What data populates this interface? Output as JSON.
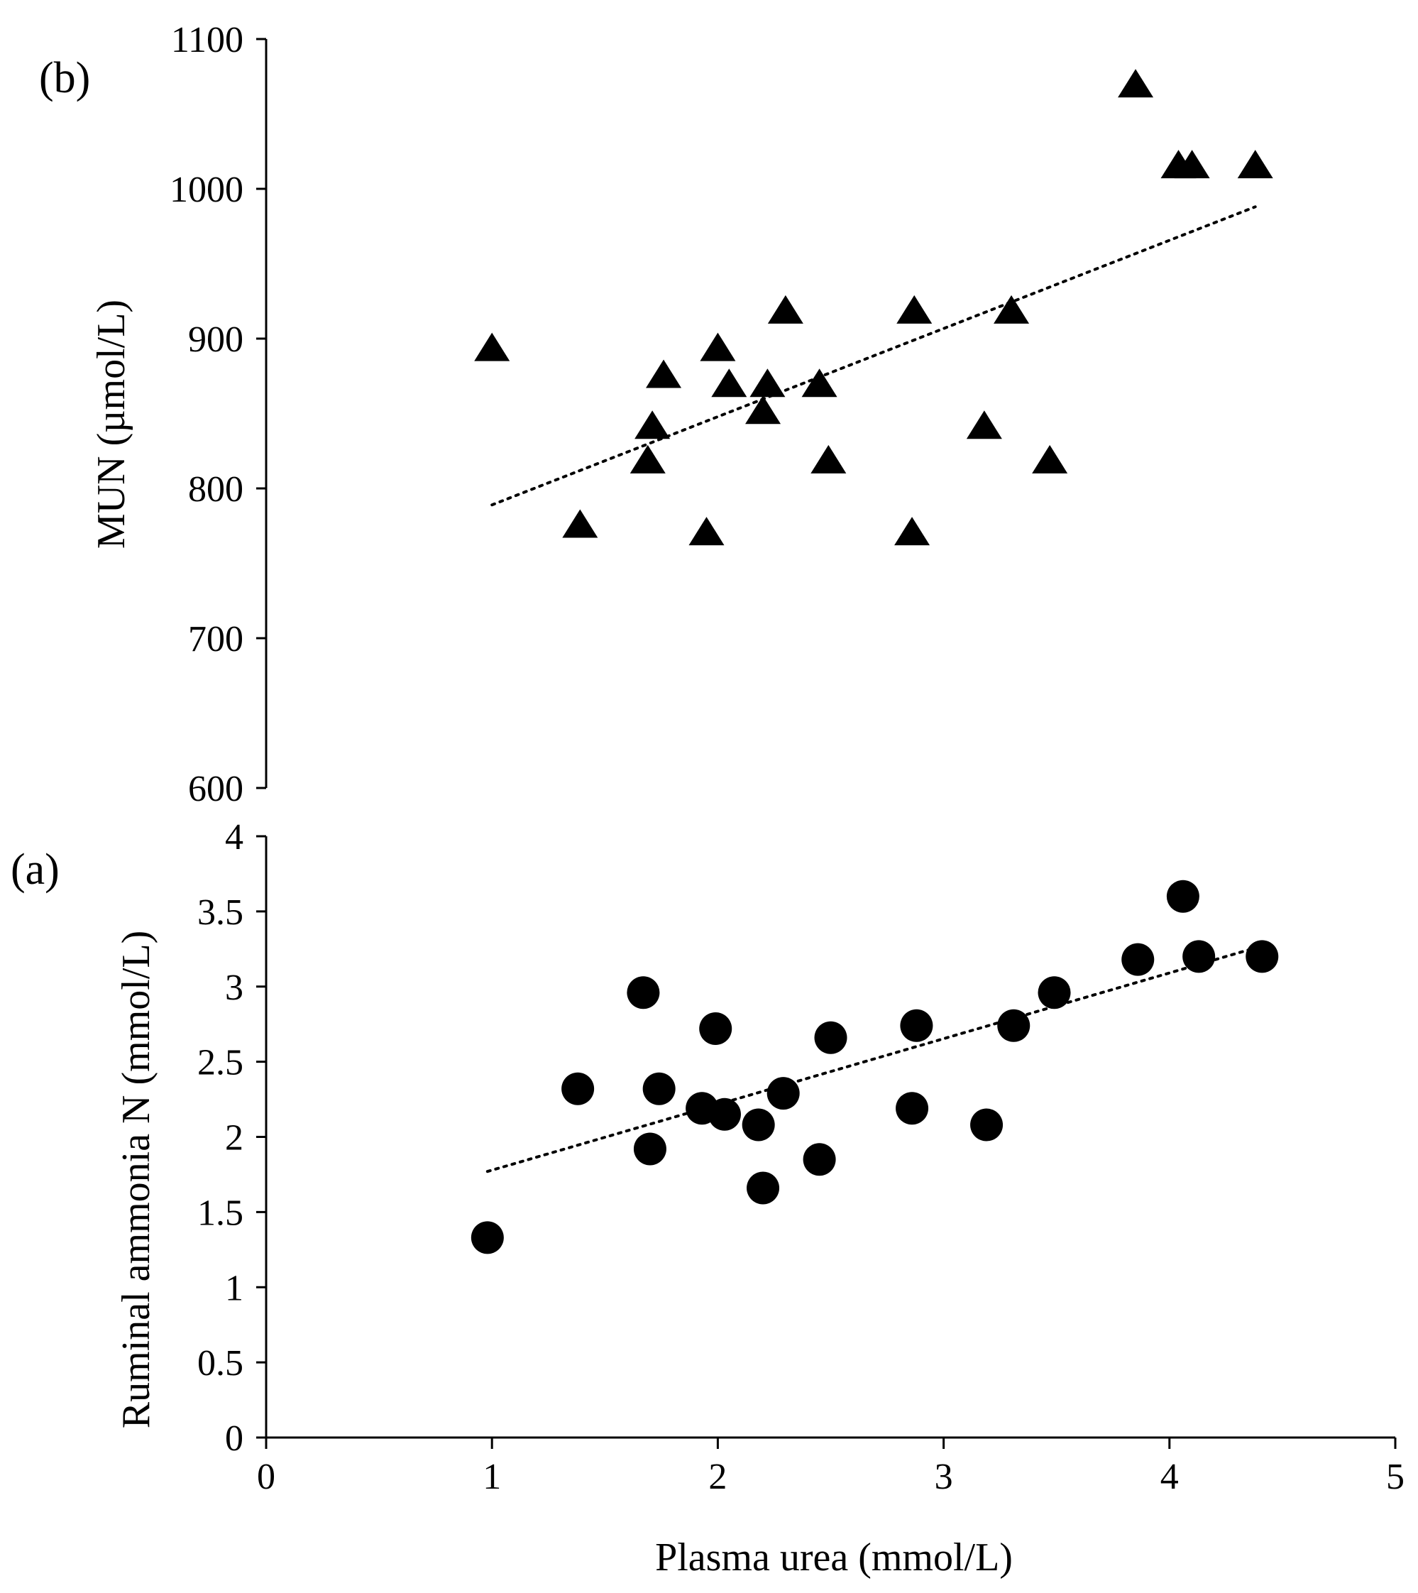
{
  "colors": {
    "ink": "#000000",
    "background": "#ffffff"
  },
  "chart_data": [
    {
      "id": "b",
      "type": "scatter",
      "panel_label": "(b)",
      "marker": "triangle",
      "trendline": "linear-dotted",
      "title": "",
      "ylabel": "MUN (µmol/L)",
      "xlabel": "",
      "xlim": [
        0,
        5
      ],
      "ylim": [
        600,
        1100
      ],
      "yticks": [
        600,
        700,
        800,
        900,
        1000,
        1100
      ],
      "ytick_labels": [
        "600",
        "700",
        "800",
        "900",
        "1000",
        "1100"
      ],
      "trend": {
        "x": [
          1.0,
          4.38
        ],
        "y": [
          789,
          988
        ]
      },
      "points": [
        {
          "x": 1.0,
          "y": 893
        },
        {
          "x": 1.39,
          "y": 775
        },
        {
          "x": 1.69,
          "y": 818
        },
        {
          "x": 1.71,
          "y": 841
        },
        {
          "x": 1.76,
          "y": 875
        },
        {
          "x": 1.95,
          "y": 770
        },
        {
          "x": 2.0,
          "y": 893
        },
        {
          "x": 2.05,
          "y": 869
        },
        {
          "x": 2.2,
          "y": 851
        },
        {
          "x": 2.22,
          "y": 869
        },
        {
          "x": 2.3,
          "y": 918
        },
        {
          "x": 2.45,
          "y": 869
        },
        {
          "x": 2.49,
          "y": 818
        },
        {
          "x": 2.86,
          "y": 770
        },
        {
          "x": 2.87,
          "y": 918
        },
        {
          "x": 3.18,
          "y": 841
        },
        {
          "x": 3.3,
          "y": 918
        },
        {
          "x": 3.47,
          "y": 818
        },
        {
          "x": 3.85,
          "y": 1069
        },
        {
          "x": 4.04,
          "y": 1015
        },
        {
          "x": 4.1,
          "y": 1015
        },
        {
          "x": 4.38,
          "y": 1015
        }
      ]
    },
    {
      "id": "a",
      "type": "scatter",
      "panel_label": "(a)",
      "marker": "circle",
      "trendline": "linear-dotted",
      "title": "",
      "ylabel": "Ruminal ammonia N (mmol/L)",
      "xlabel": "Plasma urea (mmol/L)",
      "xlim": [
        0,
        5
      ],
      "ylim": [
        0,
        4
      ],
      "xticks": [
        0,
        1,
        2,
        3,
        4,
        5
      ],
      "xtick_labels": [
        "0",
        "1",
        "2",
        "3",
        "4",
        "5"
      ],
      "yticks": [
        0,
        0.5,
        1,
        1.5,
        2,
        2.5,
        3,
        3.5,
        4
      ],
      "ytick_labels": [
        "0",
        "0.5",
        "1",
        "1.5",
        "2",
        "2.5",
        "3",
        "3.5",
        "4"
      ],
      "trend": {
        "x": [
          0.98,
          4.41
        ],
        "y": [
          1.77,
          3.27
        ]
      },
      "points": [
        {
          "x": 0.98,
          "y": 1.33
        },
        {
          "x": 1.38,
          "y": 2.32
        },
        {
          "x": 1.67,
          "y": 2.96
        },
        {
          "x": 1.7,
          "y": 1.92
        },
        {
          "x": 1.74,
          "y": 2.32
        },
        {
          "x": 1.93,
          "y": 2.19
        },
        {
          "x": 1.99,
          "y": 2.72
        },
        {
          "x": 2.03,
          "y": 2.15
        },
        {
          "x": 2.18,
          "y": 2.08
        },
        {
          "x": 2.2,
          "y": 1.66
        },
        {
          "x": 2.29,
          "y": 2.29
        },
        {
          "x": 2.45,
          "y": 1.85
        },
        {
          "x": 2.5,
          "y": 2.66
        },
        {
          "x": 2.86,
          "y": 2.19
        },
        {
          "x": 2.88,
          "y": 2.74
        },
        {
          "x": 3.19,
          "y": 2.08
        },
        {
          "x": 3.31,
          "y": 2.74
        },
        {
          "x": 3.49,
          "y": 2.96
        },
        {
          "x": 3.86,
          "y": 3.18
        },
        {
          "x": 4.06,
          "y": 3.6
        },
        {
          "x": 4.13,
          "y": 3.2
        },
        {
          "x": 4.41,
          "y": 3.2
        }
      ]
    }
  ]
}
